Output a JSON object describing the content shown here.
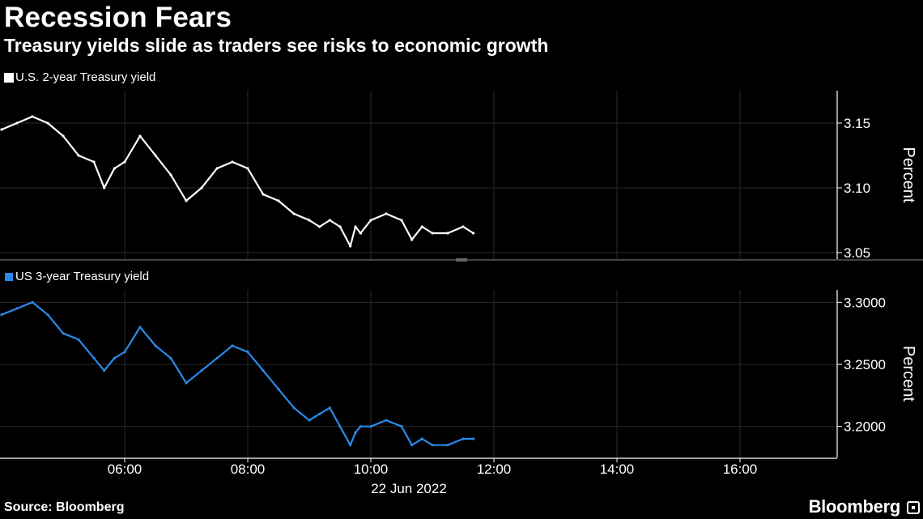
{
  "header": {
    "title": "Recession Fears",
    "subtitle": "Treasury yields slide as traders see risks to economic growth"
  },
  "footer": {
    "source": "Source: Bloomberg",
    "brand": "Bloomberg"
  },
  "colors": {
    "background": "#000000",
    "series_top": "#ffffff",
    "series_bottom": "#2a8ae8",
    "grid": "#2a2a2a"
  },
  "date_label": "22 Jun 2022",
  "chart_data": [
    {
      "type": "line",
      "series": [
        {
          "name": "U.S. 2-year Treasury yield",
          "x": [
            "04:00",
            "04:15",
            "04:30",
            "04:45",
            "05:00",
            "05:15",
            "05:30",
            "05:40",
            "05:50",
            "06:00",
            "06:15",
            "06:30",
            "06:45",
            "07:00",
            "07:15",
            "07:30",
            "07:45",
            "08:00",
            "08:15",
            "08:30",
            "08:45",
            "09:00",
            "09:10",
            "09:20",
            "09:30",
            "09:40",
            "09:45",
            "09:50",
            "10:00",
            "10:15",
            "10:30",
            "10:40",
            "10:50",
            "11:00",
            "11:15",
            "11:30",
            "11:40"
          ],
          "values": [
            3.145,
            3.15,
            3.155,
            3.15,
            3.14,
            3.125,
            3.12,
            3.1,
            3.115,
            3.12,
            3.14,
            3.125,
            3.11,
            3.09,
            3.1,
            3.115,
            3.12,
            3.115,
            3.095,
            3.09,
            3.08,
            3.075,
            3.07,
            3.075,
            3.07,
            3.055,
            3.07,
            3.065,
            3.075,
            3.08,
            3.075,
            3.06,
            3.07,
            3.065,
            3.065,
            3.07,
            3.065
          ]
        }
      ],
      "ylabel": "Percent",
      "yticks": [
        "3.15",
        "3.10",
        "3.05"
      ],
      "ylim": [
        3.045,
        3.175
      ],
      "xticks": [
        "06:00",
        "08:00",
        "10:00",
        "12:00",
        "14:00",
        "16:00"
      ],
      "grid": true,
      "legend": "top-left"
    },
    {
      "type": "line",
      "series": [
        {
          "name": "US 3-year Treasury yield",
          "x": [
            "04:00",
            "04:15",
            "04:30",
            "04:45",
            "05:00",
            "05:15",
            "05:30",
            "05:40",
            "05:50",
            "06:00",
            "06:15",
            "06:30",
            "06:45",
            "07:00",
            "07:15",
            "07:30",
            "07:45",
            "08:00",
            "08:15",
            "08:30",
            "08:45",
            "09:00",
            "09:10",
            "09:20",
            "09:30",
            "09:40",
            "09:45",
            "09:50",
            "10:00",
            "10:15",
            "10:30",
            "10:40",
            "10:50",
            "11:00",
            "11:15",
            "11:30",
            "11:40"
          ],
          "values": [
            3.29,
            3.295,
            3.3,
            3.29,
            3.275,
            3.27,
            3.255,
            3.245,
            3.255,
            3.26,
            3.28,
            3.265,
            3.255,
            3.235,
            3.245,
            3.255,
            3.265,
            3.26,
            3.245,
            3.23,
            3.215,
            3.205,
            3.21,
            3.215,
            3.2,
            3.185,
            3.195,
            3.2,
            3.2,
            3.205,
            3.2,
            3.185,
            3.19,
            3.185,
            3.185,
            3.19,
            3.19
          ]
        }
      ],
      "ylabel": "Percent",
      "yticks": [
        "3.3000",
        "3.2500",
        "3.2000"
      ],
      "ylim": [
        3.175,
        3.31
      ],
      "xticks": [
        "06:00",
        "08:00",
        "10:00",
        "12:00",
        "14:00",
        "16:00"
      ],
      "grid": true,
      "legend": "top-left"
    }
  ]
}
